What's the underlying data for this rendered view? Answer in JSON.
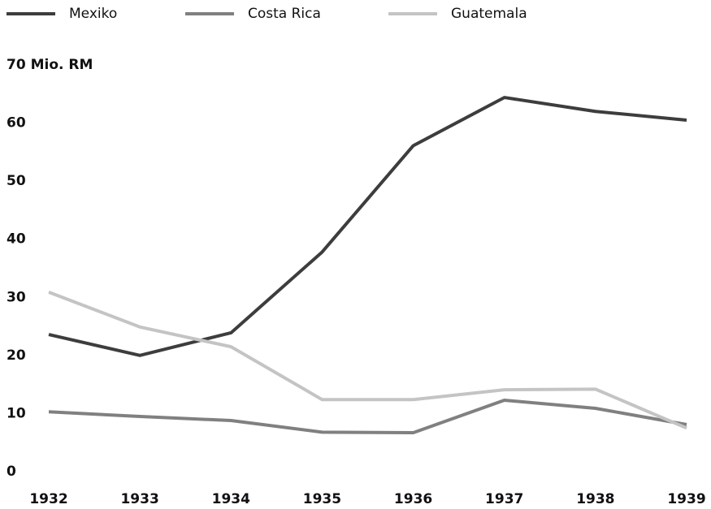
{
  "chart_data": {
    "type": "line",
    "categories": [
      "1932",
      "1933",
      "1934",
      "1935",
      "1936",
      "1937",
      "1938",
      "1939"
    ],
    "series": [
      {
        "name": "Mexiko",
        "color": "#3d3d3d",
        "values": [
          23.6,
          20,
          23.9,
          37.8,
          56.1,
          64.4,
          62,
          60.5
        ]
      },
      {
        "name": "Costa Rica",
        "color": "#808080",
        "values": [
          10.3,
          9.5,
          8.8,
          6.8,
          6.7,
          12.3,
          10.9,
          8.1
        ]
      },
      {
        "name": "Guatemala",
        "color": "#c4c4c4",
        "values": [
          30.9,
          24.9,
          21.5,
          12.4,
          12.4,
          14.1,
          14.2,
          7.5
        ]
      }
    ],
    "ylim": [
      0,
      70
    ],
    "yticks": [
      0,
      10,
      20,
      30,
      40,
      50,
      60,
      {
        "value": 70,
        "label": "70 Mio. RM"
      }
    ],
    "legend": "top",
    "grid": false
  }
}
